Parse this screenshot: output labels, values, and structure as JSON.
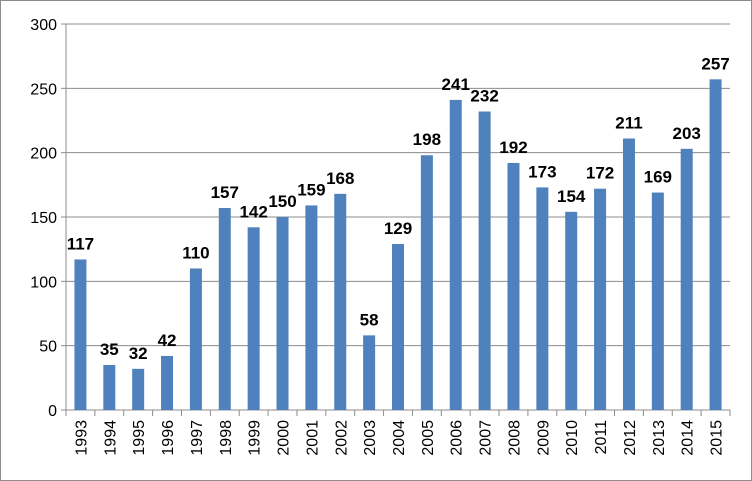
{
  "chart_data": {
    "type": "bar",
    "title": "",
    "xlabel": "",
    "ylabel": "",
    "ylim": [
      0,
      300
    ],
    "yticks": [
      0,
      50,
      100,
      150,
      200,
      250,
      300
    ],
    "grid": "horizontal",
    "legend": "none",
    "bar_color": "#4f81bd",
    "categories": [
      "1993",
      "1994",
      "1995",
      "1996",
      "1997",
      "1998",
      "1999",
      "2000",
      "2001",
      "2002",
      "2003",
      "2004",
      "2005",
      "2006",
      "2007",
      "2008",
      "2009",
      "2010",
      "2011",
      "2012",
      "2013",
      "2014",
      "2015"
    ],
    "values": [
      117,
      35,
      32,
      42,
      110,
      157,
      142,
      150,
      159,
      168,
      58,
      129,
      198,
      241,
      232,
      192,
      173,
      154,
      172,
      211,
      169,
      203,
      257
    ]
  }
}
